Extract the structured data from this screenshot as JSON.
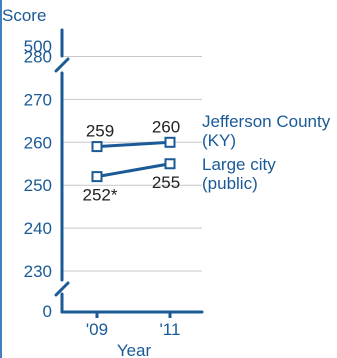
{
  "colors": {
    "axis_text": "#1a5a96",
    "series_line": "#1a5a96",
    "grid": "#c8c8c8",
    "marker_fill": "#ffffff",
    "left_rule": "#3f7fbf"
  },
  "chart_data": {
    "type": "line",
    "ylabel": "Score",
    "xlabel": "Year",
    "categories": [
      "'09",
      "'11"
    ],
    "y_axis_break": {
      "lower_tick": "0",
      "upper_tick": "500"
    },
    "y_ticks": [
      230,
      240,
      250,
      260,
      270,
      280
    ],
    "ylim": [
      225,
      282
    ],
    "grid": true,
    "series": [
      {
        "name": "Jefferson County (KY)",
        "name_lines": [
          "Jefferson County",
          "(KY)"
        ],
        "values": [
          259,
          260
        ],
        "labels": [
          "259",
          "260"
        ],
        "label_position": "above"
      },
      {
        "name": "Large city (public)",
        "name_lines": [
          "Large city",
          "(public)"
        ],
        "values": [
          252,
          255
        ],
        "labels": [
          "252*",
          "255"
        ],
        "label_position": "below"
      }
    ]
  }
}
